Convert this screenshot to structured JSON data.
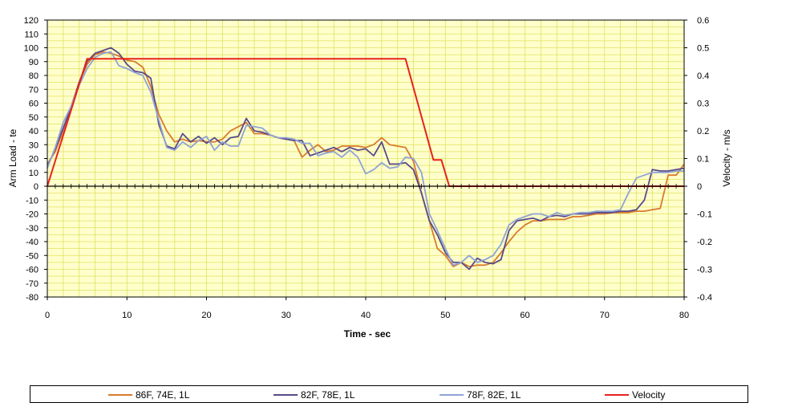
{
  "chart_data": {
    "type": "line",
    "xlabel": "Time - sec",
    "ylabel": "Arm Load - te",
    "y2label": "Velocity - m/s",
    "xlim": [
      0,
      80
    ],
    "ylim": [
      -80,
      120
    ],
    "y2lim": [
      -0.4,
      0.6
    ],
    "x_ticks": [
      0,
      10,
      20,
      30,
      40,
      50,
      60,
      70,
      80
    ],
    "y_ticks": [
      120,
      110,
      100,
      90,
      80,
      70,
      60,
      50,
      40,
      30,
      20,
      10,
      0,
      -10,
      -20,
      -30,
      -40,
      -50,
      -60,
      -70,
      -80
    ],
    "y2_ticks": [
      "0.6",
      "0.5",
      "0.4",
      "0.3",
      "0.2",
      "0.1",
      "0",
      "-0.1",
      "-0.2",
      "-0.3",
      "-0.4"
    ],
    "grid": true,
    "background": "#ffffcc",
    "gridColor": "#e0e060",
    "legend_position": "bottom",
    "series": [
      {
        "name": "86F, 74E, 1L",
        "color": "#d97b2c",
        "axis": "left",
        "points": [
          [
            0,
            16
          ],
          [
            1,
            25
          ],
          [
            2,
            40
          ],
          [
            3,
            58
          ],
          [
            4,
            75
          ],
          [
            5,
            88
          ],
          [
            6,
            95
          ],
          [
            7,
            97
          ],
          [
            8,
            96
          ],
          [
            9,
            94
          ],
          [
            10,
            91
          ],
          [
            11,
            90
          ],
          [
            12,
            86
          ],
          [
            13,
            72
          ],
          [
            14,
            52
          ],
          [
            15,
            40
          ],
          [
            16,
            32
          ],
          [
            17,
            34
          ],
          [
            18,
            32
          ],
          [
            19,
            33
          ],
          [
            20,
            32
          ],
          [
            21,
            32
          ],
          [
            22,
            34
          ],
          [
            23,
            40
          ],
          [
            24,
            43
          ],
          [
            25,
            46
          ],
          [
            26,
            38
          ],
          [
            27,
            38
          ],
          [
            28,
            37
          ],
          [
            29,
            35
          ],
          [
            30,
            34
          ],
          [
            31,
            33
          ],
          [
            32,
            21
          ],
          [
            33,
            26
          ],
          [
            34,
            30
          ],
          [
            35,
            25
          ],
          [
            36,
            26
          ],
          [
            37,
            29
          ],
          [
            38,
            29
          ],
          [
            39,
            29
          ],
          [
            40,
            28
          ],
          [
            41,
            30
          ],
          [
            42,
            35
          ],
          [
            43,
            30
          ],
          [
            44,
            29
          ],
          [
            45,
            28
          ],
          [
            46,
            18
          ],
          [
            47,
            -5
          ],
          [
            48,
            -25
          ],
          [
            49,
            -45
          ],
          [
            50,
            -50
          ],
          [
            51,
            -58
          ],
          [
            52,
            -55
          ],
          [
            53,
            -58
          ],
          [
            54,
            -57
          ],
          [
            55,
            -57
          ],
          [
            56,
            -55
          ],
          [
            57,
            -48
          ],
          [
            58,
            -40
          ],
          [
            59,
            -33
          ],
          [
            60,
            -28
          ],
          [
            61,
            -25
          ],
          [
            62,
            -25
          ],
          [
            63,
            -24
          ],
          [
            64,
            -24
          ],
          [
            65,
            -24
          ],
          [
            66,
            -22
          ],
          [
            67,
            -22
          ],
          [
            68,
            -21
          ],
          [
            69,
            -20
          ],
          [
            70,
            -20
          ],
          [
            71,
            -19
          ],
          [
            72,
            -19
          ],
          [
            73,
            -19
          ],
          [
            74,
            -18
          ],
          [
            75,
            -18
          ],
          [
            76,
            -17
          ],
          [
            77,
            -16
          ],
          [
            78,
            8
          ],
          [
            79,
            8
          ],
          [
            80,
            16
          ]
        ]
      },
      {
        "name": "82F, 78E, 1L",
        "color": "#5a4a8a",
        "axis": "left",
        "points": [
          [
            0,
            14
          ],
          [
            1,
            27
          ],
          [
            2,
            42
          ],
          [
            3,
            57
          ],
          [
            4,
            75
          ],
          [
            5,
            90
          ],
          [
            6,
            96
          ],
          [
            7,
            98
          ],
          [
            8,
            100
          ],
          [
            9,
            96
          ],
          [
            10,
            88
          ],
          [
            11,
            83
          ],
          [
            12,
            82
          ],
          [
            13,
            78
          ],
          [
            14,
            45
          ],
          [
            15,
            29
          ],
          [
            16,
            27
          ],
          [
            17,
            38
          ],
          [
            18,
            32
          ],
          [
            19,
            36
          ],
          [
            20,
            31
          ],
          [
            21,
            35
          ],
          [
            22,
            30
          ],
          [
            23,
            35
          ],
          [
            24,
            36
          ],
          [
            25,
            49
          ],
          [
            26,
            40
          ],
          [
            27,
            39
          ],
          [
            28,
            37
          ],
          [
            29,
            35
          ],
          [
            30,
            34
          ],
          [
            31,
            33
          ],
          [
            32,
            33
          ],
          [
            33,
            22
          ],
          [
            34,
            24
          ],
          [
            35,
            26
          ],
          [
            36,
            28
          ],
          [
            37,
            25
          ],
          [
            38,
            28
          ],
          [
            39,
            26
          ],
          [
            40,
            27
          ],
          [
            41,
            22
          ],
          [
            42,
            32
          ],
          [
            43,
            16
          ],
          [
            44,
            16
          ],
          [
            45,
            17
          ],
          [
            46,
            12
          ],
          [
            47,
            -5
          ],
          [
            48,
            -25
          ],
          [
            49,
            -35
          ],
          [
            50,
            -48
          ],
          [
            51,
            -55
          ],
          [
            52,
            -55
          ],
          [
            53,
            -60
          ],
          [
            54,
            -52
          ],
          [
            55,
            -55
          ],
          [
            56,
            -56
          ],
          [
            57,
            -53
          ],
          [
            58,
            -32
          ],
          [
            59,
            -25
          ],
          [
            60,
            -24
          ],
          [
            61,
            -23
          ],
          [
            62,
            -25
          ],
          [
            63,
            -22
          ],
          [
            64,
            -21
          ],
          [
            65,
            -22
          ],
          [
            66,
            -20
          ],
          [
            67,
            -20
          ],
          [
            68,
            -20
          ],
          [
            69,
            -19
          ],
          [
            70,
            -19
          ],
          [
            71,
            -19
          ],
          [
            72,
            -18
          ],
          [
            73,
            -18
          ],
          [
            74,
            -17
          ],
          [
            75,
            -10
          ],
          [
            76,
            12
          ],
          [
            77,
            11
          ],
          [
            78,
            11
          ],
          [
            79,
            12
          ],
          [
            80,
            13
          ]
        ]
      },
      {
        "name": "78F, 82E, 1L",
        "color": "#8fa3d6",
        "axis": "left",
        "points": [
          [
            0,
            13
          ],
          [
            1,
            28
          ],
          [
            2,
            46
          ],
          [
            3,
            58
          ],
          [
            4,
            73
          ],
          [
            5,
            85
          ],
          [
            6,
            93
          ],
          [
            7,
            96
          ],
          [
            8,
            97
          ],
          [
            9,
            87
          ],
          [
            10,
            85
          ],
          [
            11,
            82
          ],
          [
            12,
            80
          ],
          [
            13,
            68
          ],
          [
            14,
            48
          ],
          [
            15,
            28
          ],
          [
            16,
            26
          ],
          [
            17,
            32
          ],
          [
            18,
            28
          ],
          [
            19,
            33
          ],
          [
            20,
            36
          ],
          [
            21,
            26
          ],
          [
            22,
            32
          ],
          [
            23,
            29
          ],
          [
            24,
            29
          ],
          [
            25,
            44
          ],
          [
            26,
            43
          ],
          [
            27,
            42
          ],
          [
            28,
            37
          ],
          [
            29,
            35
          ],
          [
            30,
            35
          ],
          [
            31,
            34
          ],
          [
            32,
            31
          ],
          [
            33,
            31
          ],
          [
            34,
            22
          ],
          [
            35,
            24
          ],
          [
            36,
            25
          ],
          [
            37,
            21
          ],
          [
            38,
            26
          ],
          [
            39,
            21
          ],
          [
            40,
            9
          ],
          [
            41,
            12
          ],
          [
            42,
            17
          ],
          [
            43,
            13
          ],
          [
            44,
            14
          ],
          [
            45,
            21
          ],
          [
            46,
            20
          ],
          [
            47,
            10
          ],
          [
            48,
            -20
          ],
          [
            49,
            -32
          ],
          [
            50,
            -45
          ],
          [
            51,
            -57
          ],
          [
            52,
            -55
          ],
          [
            53,
            -50
          ],
          [
            54,
            -55
          ],
          [
            55,
            -53
          ],
          [
            56,
            -50
          ],
          [
            57,
            -42
          ],
          [
            58,
            -28
          ],
          [
            59,
            -24
          ],
          [
            60,
            -22
          ],
          [
            61,
            -20
          ],
          [
            62,
            -20
          ],
          [
            63,
            -22
          ],
          [
            64,
            -19
          ],
          [
            65,
            -21
          ],
          [
            66,
            -20
          ],
          [
            67,
            -19
          ],
          [
            68,
            -19
          ],
          [
            69,
            -18
          ],
          [
            70,
            -18
          ],
          [
            71,
            -18
          ],
          [
            72,
            -17
          ],
          [
            73,
            -5
          ],
          [
            74,
            6
          ],
          [
            75,
            8
          ],
          [
            76,
            10
          ],
          [
            77,
            10
          ],
          [
            78,
            10
          ],
          [
            79,
            11
          ],
          [
            80,
            11
          ]
        ]
      },
      {
        "name": "Velocity",
        "color": "#e8221c",
        "axis": "right",
        "points": [
          [
            0,
            0
          ],
          [
            5,
            0.46
          ],
          [
            45,
            0.46
          ],
          [
            48.5,
            0.095
          ],
          [
            49.5,
            0.095
          ],
          [
            50.5,
            0
          ],
          [
            80,
            0
          ]
        ]
      }
    ]
  }
}
